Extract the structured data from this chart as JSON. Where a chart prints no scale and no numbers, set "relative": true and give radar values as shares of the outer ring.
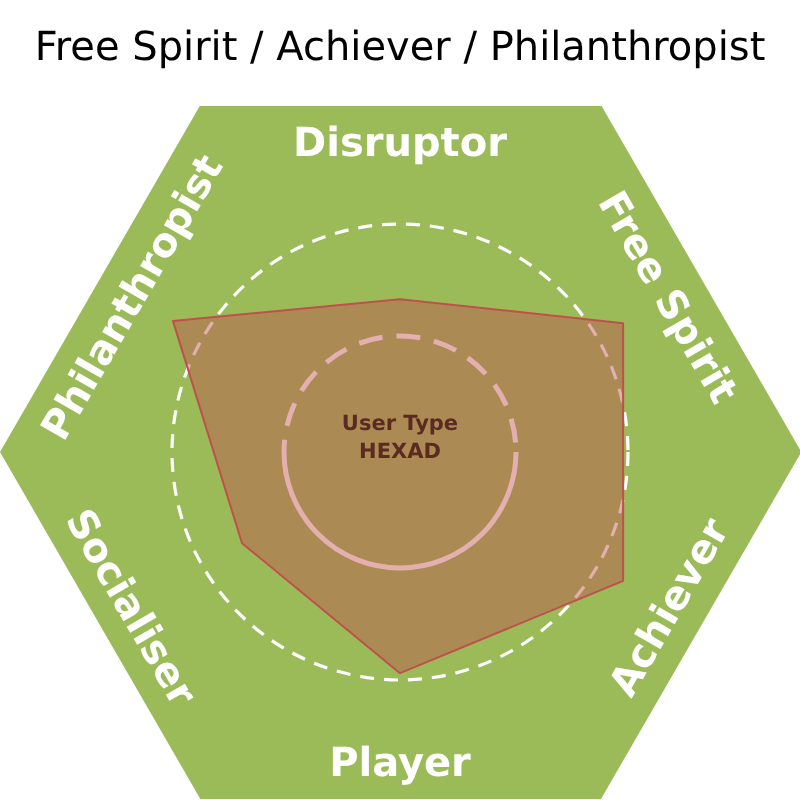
{
  "chart_data": {
    "type": "radar",
    "title": "Free Spirit / Achiever / Philanthropist",
    "categories": [
      "Disruptor",
      "Free Spirit",
      "Achiever",
      "Player",
      "Socialiser",
      "Philanthropist"
    ],
    "series": [
      {
        "color": "#c0504d",
        "values": [
          0.67,
          1.13,
          1.13,
          0.97,
          0.8,
          1.15
        ]
      }
    ],
    "relative": true,
    "grid": true,
    "annotations": [
      "User Type",
      "HEXAD"
    ]
  }
}
